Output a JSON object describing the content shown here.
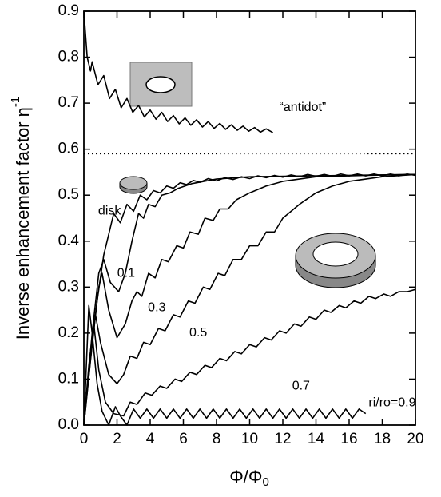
{
  "chart_data": {
    "type": "line",
    "xlabel": "Φ/Φ",
    "xlabel_sub": "0",
    "ylabel": "Inverse enhancement factor η",
    "ylabel_sup": "-1",
    "xlim": [
      0,
      20
    ],
    "xticks": [
      0,
      2,
      4,
      6,
      8,
      10,
      12,
      14,
      16,
      18,
      20
    ],
    "ylim": [
      0,
      0.9
    ],
    "yticks": [
      {
        "value": 0,
        "label": "0.0"
      },
      0.1,
      0.2,
      0.3,
      0.4,
      0.5,
      0.6,
      0.7,
      0.8,
      0.9
    ],
    "hline": {
      "y": 0.59,
      "style": "dotted"
    },
    "series": [
      {
        "name": "“antidot”",
        "color": "#000000",
        "x": [
          0,
          0.2,
          0.4,
          0.5,
          0.85,
          1.2,
          1.55,
          1.9,
          2.25,
          2.6,
          2.95,
          3.3,
          3.65,
          4.0,
          4.35,
          4.7,
          5.05,
          5.4,
          5.75,
          6.1,
          6.45,
          6.8,
          7.15,
          7.5,
          7.85,
          8.2,
          8.55,
          8.9,
          9.25,
          9.6,
          9.95,
          10.3,
          10.65,
          11.0,
          11.4
        ],
        "values": [
          0.9,
          0.8,
          0.77,
          0.79,
          0.74,
          0.76,
          0.71,
          0.73,
          0.69,
          0.71,
          0.68,
          0.695,
          0.67,
          0.685,
          0.665,
          0.68,
          0.66,
          0.673,
          0.655,
          0.668,
          0.652,
          0.664,
          0.648,
          0.66,
          0.645,
          0.656,
          0.643,
          0.653,
          0.641,
          0.65,
          0.639,
          0.647,
          0.637,
          0.644,
          0.636
        ]
      },
      {
        "name": "disk",
        "color": "#000000",
        "x": [
          0,
          0.4,
          0.8,
          1.2,
          1.6,
          1.8,
          2.2,
          2.6,
          3.0,
          3.4,
          3.8,
          4.2,
          4.6,
          5.0,
          5.4,
          5.8,
          6.2,
          6.6,
          7.0,
          7.5,
          8.0,
          8.5,
          9.0,
          9.5,
          10,
          10.5,
          11,
          11.5,
          12,
          12.5,
          13,
          13.5,
          14,
          14.5,
          15,
          15.5,
          16,
          16.5,
          17,
          17.5,
          18,
          18.5,
          19,
          19.5,
          20
        ],
        "values": [
          0,
          0.14,
          0.27,
          0.37,
          0.43,
          0.46,
          0.44,
          0.48,
          0.465,
          0.5,
          0.49,
          0.51,
          0.505,
          0.52,
          0.515,
          0.527,
          0.523,
          0.532,
          0.528,
          0.536,
          0.531,
          0.538,
          0.534,
          0.54,
          0.536,
          0.542,
          0.538,
          0.543,
          0.539,
          0.544,
          0.54,
          0.545,
          0.541,
          0.545,
          0.541,
          0.546,
          0.542,
          0.546,
          0.542,
          0.546,
          0.542,
          0.546,
          0.542,
          0.546,
          0.543
        ]
      },
      {
        "name": "0.1",
        "color": "#000000",
        "x": [
          0,
          0.5,
          0.9,
          1.2,
          1.6,
          2.1,
          2.5,
          2.9,
          3.3,
          3.6,
          3.9,
          4.3,
          4.7,
          5.2,
          5.7,
          6.5,
          8,
          10,
          14,
          20
        ],
        "values": [
          0,
          0.2,
          0.33,
          0.36,
          0.31,
          0.29,
          0.33,
          0.4,
          0.46,
          0.45,
          0.48,
          0.475,
          0.5,
          0.505,
          0.515,
          0.525,
          0.535,
          0.54,
          0.542,
          0.545
        ]
      },
      {
        "name": "0.3",
        "color": "#000000",
        "x": [
          0,
          0.5,
          0.9,
          1.1,
          1.5,
          2.0,
          2.5,
          2.9,
          3.2,
          3.5,
          3.9,
          4.3,
          4.7,
          5.1,
          5.6,
          6.0,
          6.4,
          6.9,
          7.3,
          7.8,
          8.2,
          8.7,
          9.2,
          10,
          11,
          12,
          14,
          17,
          20
        ],
        "values": [
          0,
          0.18,
          0.3,
          0.33,
          0.25,
          0.19,
          0.22,
          0.27,
          0.29,
          0.28,
          0.33,
          0.32,
          0.36,
          0.355,
          0.39,
          0.385,
          0.42,
          0.415,
          0.45,
          0.445,
          0.47,
          0.47,
          0.49,
          0.505,
          0.52,
          0.53,
          0.54,
          0.543,
          0.545
        ]
      },
      {
        "name": "0.5",
        "color": "#000000",
        "x": [
          0,
          0.4,
          0.7,
          1.0,
          1.5,
          2.0,
          2.4,
          2.8,
          3.2,
          3.6,
          4.0,
          4.5,
          4.9,
          5.4,
          5.8,
          6.3,
          6.7,
          7.2,
          7.6,
          8.1,
          8.5,
          9,
          9.5,
          10,
          10.5,
          11,
          11.5,
          12,
          13,
          14,
          15,
          16,
          18,
          20
        ],
        "values": [
          0,
          0.15,
          0.24,
          0.18,
          0.11,
          0.09,
          0.11,
          0.15,
          0.145,
          0.18,
          0.175,
          0.21,
          0.205,
          0.24,
          0.235,
          0.27,
          0.265,
          0.3,
          0.295,
          0.33,
          0.325,
          0.36,
          0.36,
          0.39,
          0.39,
          0.42,
          0.42,
          0.45,
          0.48,
          0.505,
          0.52,
          0.53,
          0.54,
          0.545
        ]
      },
      {
        "name": "0.7",
        "color": "#000000",
        "x": [
          0,
          0.3,
          0.6,
          0.9,
          1.3,
          1.8,
          2.4,
          2.8,
          3.2,
          3.7,
          4.1,
          4.6,
          5.0,
          5.5,
          5.9,
          6.4,
          6.8,
          7.3,
          7.7,
          8.2,
          8.6,
          9.1,
          9.5,
          10,
          10.4,
          10.9,
          11.3,
          11.8,
          12.2,
          12.7,
          13.1,
          13.6,
          14,
          14.5,
          14.9,
          15.4,
          15.8,
          16.3,
          16.7,
          17.2,
          17.6,
          18.1,
          18.5,
          19,
          19.5,
          20
        ],
        "values": [
          0,
          0.13,
          0.22,
          0.12,
          0.05,
          0.025,
          0.02,
          0.05,
          0.045,
          0.07,
          0.065,
          0.085,
          0.08,
          0.1,
          0.095,
          0.115,
          0.11,
          0.13,
          0.125,
          0.145,
          0.14,
          0.16,
          0.155,
          0.175,
          0.17,
          0.19,
          0.185,
          0.205,
          0.2,
          0.22,
          0.215,
          0.235,
          0.23,
          0.25,
          0.245,
          0.26,
          0.255,
          0.27,
          0.265,
          0.28,
          0.275,
          0.285,
          0.28,
          0.29,
          0.29,
          0.295
        ]
      },
      {
        "name": "ri/ro=0.9",
        "color": "#000000",
        "x": [
          0,
          0.3,
          0.5,
          0.8,
          1.1,
          1.5,
          1.9,
          2.2,
          2.6,
          3.0,
          3.4,
          3.8,
          4.2,
          4.6,
          5.0,
          5.4,
          5.8,
          6.2,
          6.6,
          7.0,
          7.4,
          7.8,
          8.2,
          8.6,
          9.0,
          9.4,
          9.8,
          10.2,
          10.6,
          11.0,
          11.4,
          11.8,
          12.2,
          12.6,
          13.0,
          13.4,
          13.8,
          14.2,
          14.6,
          15.0,
          15.4,
          15.8,
          16.2,
          16.6,
          17.0
        ],
        "values": [
          0,
          0.26,
          0.2,
          0.09,
          0.03,
          0,
          0.04,
          0.02,
          0,
          0.035,
          0.015,
          0.035,
          0.015,
          0.035,
          0.015,
          0.035,
          0.015,
          0.035,
          0.015,
          0.035,
          0.015,
          0.035,
          0.015,
          0.035,
          0.015,
          0.035,
          0.015,
          0.035,
          0.015,
          0.035,
          0.015,
          0.035,
          0.015,
          0.035,
          0.015,
          0.035,
          0.015,
          0.035,
          0.015,
          0.035,
          0.015,
          0.035,
          0.015,
          0.035,
          0.025
        ]
      }
    ]
  }
}
